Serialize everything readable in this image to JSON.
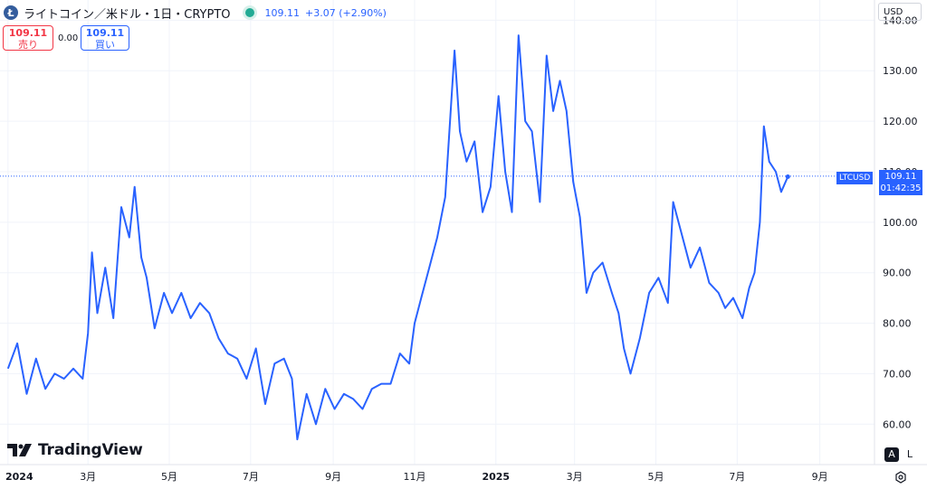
{
  "header": {
    "coin_icon": "litecoin-icon",
    "title": "ライトコイン／米ドル・1日・CRYPTO",
    "status_color": "#22ab94",
    "last_price": "109.11",
    "change": "+3.07 (+2.90%)"
  },
  "trade": {
    "sell_price": "109.11",
    "sell_label": "売り",
    "spread": "0.00",
    "buy_price": "109.11",
    "buy_label": "買い"
  },
  "currency_selector": "USD",
  "price_label": {
    "ticker": "LTCUSD",
    "price": "109.11",
    "countdown": "01:42:35"
  },
  "scale_buttons": {
    "auto": "A",
    "log": "L"
  },
  "brand": "TradingView",
  "colors": {
    "line": "#2962ff",
    "sell": "#f23645",
    "buy": "#2962ff",
    "grid": "#f0f3fa"
  },
  "chart_data": {
    "type": "line",
    "series": [
      {
        "name": "LTCUSD",
        "x": [
          "2024-01-01",
          "2024-01-08",
          "2024-01-15",
          "2024-01-22",
          "2024-01-29",
          "2024-02-05",
          "2024-02-12",
          "2024-02-19",
          "2024-02-26",
          "2024-03-01",
          "2024-03-04",
          "2024-03-08",
          "2024-03-14",
          "2024-03-20",
          "2024-03-26",
          "2024-04-01",
          "2024-04-05",
          "2024-04-10",
          "2024-04-14",
          "2024-04-20",
          "2024-04-27",
          "2024-05-03",
          "2024-05-10",
          "2024-05-17",
          "2024-05-24",
          "2024-05-31",
          "2024-06-07",
          "2024-06-14",
          "2024-06-21",
          "2024-06-28",
          "2024-07-05",
          "2024-07-12",
          "2024-07-19",
          "2024-07-26",
          "2024-08-01",
          "2024-08-05",
          "2024-08-12",
          "2024-08-19",
          "2024-08-26",
          "2024-09-02",
          "2024-09-09",
          "2024-09-16",
          "2024-09-23",
          "2024-09-30",
          "2024-10-07",
          "2024-10-14",
          "2024-10-21",
          "2024-10-28",
          "2024-11-01",
          "2024-11-06",
          "2024-11-12",
          "2024-11-18",
          "2024-11-24",
          "2024-12-01",
          "2024-12-05",
          "2024-12-10",
          "2024-12-16",
          "2024-12-22",
          "2024-12-28",
          "2025-01-03",
          "2025-01-08",
          "2025-01-13",
          "2025-01-18",
          "2025-01-23",
          "2025-01-28",
          "2025-02-03",
          "2025-02-08",
          "2025-02-13",
          "2025-02-18",
          "2025-02-23",
          "2025-02-28",
          "2025-03-05",
          "2025-03-10",
          "2025-03-15",
          "2025-03-22",
          "2025-03-29",
          "2025-04-03",
          "2025-04-07",
          "2025-04-12",
          "2025-04-19",
          "2025-04-26",
          "2025-05-03",
          "2025-05-10",
          "2025-05-14",
          "2025-05-20",
          "2025-05-27",
          "2025-06-03",
          "2025-06-10",
          "2025-06-17",
          "2025-06-22",
          "2025-06-28",
          "2025-07-05",
          "2025-07-10",
          "2025-07-14",
          "2025-07-18",
          "2025-07-21",
          "2025-07-25",
          "2025-07-30",
          "2025-08-03",
          "2025-08-08"
        ],
        "y": [
          71,
          76,
          66,
          73,
          67,
          70,
          69,
          71,
          69,
          78,
          94,
          82,
          91,
          81,
          103,
          97,
          107,
          93,
          89,
          79,
          86,
          82,
          86,
          81,
          84,
          82,
          77,
          74,
          73,
          69,
          75,
          64,
          72,
          73,
          69,
          57,
          66,
          60,
          67,
          63,
          66,
          65,
          63,
          67,
          68,
          68,
          74,
          72,
          80,
          85,
          91,
          97,
          105,
          134,
          118,
          112,
          116,
          102,
          107,
          125,
          110,
          102,
          137,
          120,
          118,
          104,
          133,
          122,
          128,
          122,
          108,
          101,
          86,
          90,
          92,
          86,
          82,
          75,
          70,
          77,
          86,
          89,
          84,
          104,
          98,
          91,
          95,
          88,
          86,
          83,
          85,
          81,
          87,
          90,
          100,
          119,
          112,
          110,
          106,
          109
        ]
      }
    ],
    "y_ticks": [
      "140.00",
      "130.00",
      "120.00",
      "110.00",
      "100.00",
      "90.00",
      "80.00",
      "70.00",
      "60.00"
    ],
    "x_ticks": [
      "2024",
      "3月",
      "5月",
      "7月",
      "9月",
      "11月",
      "2025",
      "3月",
      "5月",
      "7月",
      "9月"
    ],
    "x_tick_dates": [
      "2024-01-01",
      "2024-03-01",
      "2024-05-01",
      "2024-07-01",
      "2024-09-01",
      "2024-11-01",
      "2025-01-01",
      "2025-03-01",
      "2025-05-01",
      "2025-07-01",
      "2025-09-01"
    ],
    "ylim": [
      52,
      144
    ],
    "grid": true,
    "last_value_line": 109.11
  }
}
